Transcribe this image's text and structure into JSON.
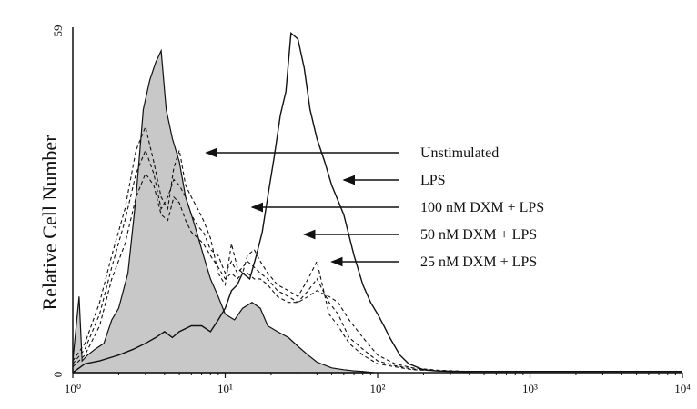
{
  "chart_data": {
    "type": "area",
    "xscale": "log",
    "xlim": [
      1,
      10000
    ],
    "ylim": [
      0,
      59
    ],
    "ylabel": "Relative Cell Number",
    "xlabel": "",
    "x_ticks": [
      "10⁰",
      "10¹",
      "10²",
      "10³",
      "10⁴"
    ],
    "y_ticks": [
      "0",
      "59"
    ],
    "grid": false,
    "colors": {
      "shaded_fill": "#c8c8c8",
      "line": "#111111"
    },
    "series": [
      {
        "name": "Unstimulated",
        "style": "filled-gray",
        "x": [
          1.0,
          1.1,
          1.15,
          1.25,
          1.4,
          1.6,
          1.8,
          2.0,
          2.3,
          2.6,
          2.9,
          3.2,
          3.5,
          3.8,
          4.1,
          4.5,
          5.0,
          5.5,
          6.0,
          6.5,
          7.2,
          8.0,
          9.0,
          10.0,
          11.5,
          13.0,
          15.0,
          17.0,
          19.0,
          22.0,
          26.0,
          30.0,
          35.0,
          40.0,
          50.0,
          60.0,
          70.0,
          80.0,
          95.0
        ],
        "values": [
          2,
          13,
          2,
          3,
          4,
          5,
          9,
          11,
          17,
          30,
          45,
          50,
          53,
          55,
          45,
          40,
          36,
          30,
          27,
          24,
          20,
          16,
          13,
          10,
          9,
          11,
          12,
          11,
          8,
          7,
          6,
          4.5,
          3,
          1.8,
          0.8,
          0.5,
          0.3,
          0.2,
          0
        ]
      },
      {
        "name": "LPS",
        "style": "solid",
        "x": [
          1.0,
          1.2,
          1.5,
          2.0,
          2.5,
          3.0,
          3.5,
          4.0,
          4.5,
          5.0,
          6.0,
          7.0,
          8.0,
          9.0,
          10.0,
          11.0,
          12.0,
          13.0,
          14.5,
          16.0,
          17.5,
          19.0,
          21.0,
          23.0,
          25.0,
          27.0,
          30.0,
          33.0,
          36.0,
          40.0,
          45.0,
          50.0,
          60.0,
          70.0,
          80.0,
          90.0,
          100.0,
          110.0,
          120.0,
          140.0,
          160.0,
          200.0,
          240.0,
          300.0,
          400.0,
          600.0,
          1000.0,
          2000.0,
          4000.0,
          10000.0
        ],
        "values": [
          0,
          1.5,
          2,
          3,
          4,
          5,
          6,
          7,
          6,
          7,
          8,
          8,
          7,
          9,
          11,
          14,
          15,
          17,
          16,
          20,
          24,
          30,
          37,
          44,
          48,
          58,
          57,
          52,
          45,
          40,
          36,
          32,
          27,
          20,
          15,
          12,
          10,
          8,
          6,
          3,
          1.5,
          0.5,
          0.3,
          0.2,
          0.2,
          0.2,
          0.2,
          0.2,
          0.2,
          0.2
        ]
      },
      {
        "name": "100 nM DXM + LPS",
        "style": "dashed",
        "x": [
          1.0,
          1.2,
          1.5,
          1.8,
          2.2,
          2.6,
          3.0,
          3.4,
          3.8,
          4.2,
          4.6,
          5.0,
          5.5,
          6.0,
          6.6,
          7.2,
          8.0,
          9.0,
          10.0,
          11.0,
          12.0,
          13.0,
          14.0,
          15.5,
          17.0,
          19.0,
          22.0,
          26.0,
          30.0,
          35.0,
          40.0,
          48.0,
          55.0,
          65.0,
          80.0,
          100.0,
          130.0,
          170.0,
          250.0,
          400.0
        ],
        "values": [
          2,
          5,
          12,
          20,
          28,
          38,
          42,
          36,
          30,
          28,
          35,
          38,
          32,
          30,
          28,
          26,
          23,
          17,
          15,
          22,
          18,
          17,
          20,
          21,
          19,
          17,
          15,
          14,
          13,
          16,
          19,
          10,
          8,
          5,
          3,
          1.5,
          1,
          0.5,
          0.3,
          0.2
        ]
      },
      {
        "name": "50 nM DXM + LPS",
        "style": "dashed",
        "x": [
          1.0,
          1.2,
          1.5,
          1.8,
          2.2,
          2.6,
          3.0,
          3.4,
          3.8,
          4.2,
          4.6,
          5.0,
          5.5,
          6.0,
          6.6,
          7.2,
          8.0,
          9.0,
          10.0,
          11.0,
          12.0,
          13.0,
          14.0,
          15.5,
          17.0,
          19.0,
          22.0,
          26.0,
          30.0,
          35.0,
          40.0,
          48.0,
          55.0,
          65.0,
          80.0,
          100.0,
          130.0,
          170.0,
          250.0,
          400.0
        ],
        "values": [
          1.5,
          4,
          10,
          18,
          26,
          34,
          38,
          34,
          28,
          30,
          33,
          32,
          30,
          27,
          25,
          24,
          21,
          20,
          17,
          19,
          17,
          18,
          19,
          18,
          17,
          16,
          14,
          13,
          12,
          14,
          16,
          12,
          10,
          6,
          4,
          2,
          1.2,
          0.6,
          0.3,
          0.2
        ]
      },
      {
        "name": "25 nM DXM + LPS",
        "style": "dashed",
        "x": [
          1.0,
          1.2,
          1.5,
          1.8,
          2.2,
          2.6,
          3.0,
          3.4,
          3.8,
          4.2,
          4.6,
          5.0,
          5.5,
          6.0,
          6.6,
          7.2,
          8.0,
          9.0,
          10.0,
          11.0,
          12.0,
          13.0,
          14.0,
          15.5,
          17.0,
          19.0,
          22.0,
          26.0,
          30.0,
          35.0,
          40.0,
          48.0,
          55.0,
          65.0,
          80.0,
          100.0,
          130.0,
          170.0,
          250.0,
          400.0
        ],
        "values": [
          1,
          3,
          8,
          16,
          22,
          30,
          34,
          32,
          27,
          26,
          30,
          29,
          26,
          24,
          23,
          22,
          20,
          18,
          16,
          17,
          16,
          17,
          17,
          16,
          16,
          15,
          13,
          12,
          12,
          13,
          14,
          13,
          12,
          9,
          6,
          3,
          1.5,
          0.8,
          0.4,
          0.2
        ]
      }
    ],
    "annotations": [
      {
        "text": "Unstimulated",
        "target_x": 7.5,
        "target_y": 36
      },
      {
        "text": "LPS",
        "target_x": 60,
        "target_y": 32
      },
      {
        "text": "100 nM DXM + LPS",
        "target_x": 15.0,
        "target_y": 27
      },
      {
        "text": "50 nM DXM + LPS",
        "target_x": 33.0,
        "target_y": 21
      },
      {
        "text": "25 nM DXM + LPS",
        "target_x": 50.0,
        "target_y": 17
      }
    ]
  }
}
